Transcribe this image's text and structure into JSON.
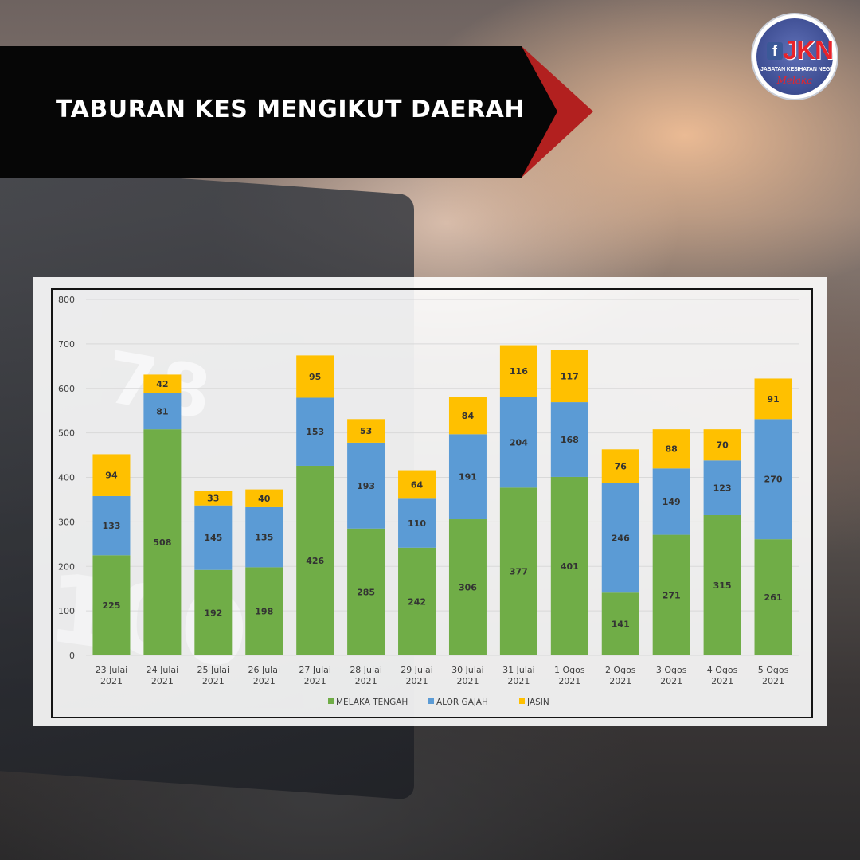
{
  "header": {
    "title": "TABURAN KES MENGIKUT DAERAH"
  },
  "logo": {
    "brand": "JKN",
    "subtitle": "JABATAN KESIHATAN NEGERI",
    "script": "Melaka",
    "social_glyph": "f",
    "icon": "facebook-icon"
  },
  "colors": {
    "banner_black": "#060606",
    "banner_red": "#b2201f",
    "melaka_tengah": "#70ad47",
    "alor_gajah": "#5b9bd5",
    "jasin": "#ffc000"
  },
  "chart_data": {
    "type": "bar",
    "stacked": true,
    "categories": [
      [
        "23 Julai",
        "2021"
      ],
      [
        "24 Julai",
        "2021"
      ],
      [
        "25 Julai",
        "2021"
      ],
      [
        "26 Julai",
        "2021"
      ],
      [
        "27 Julai",
        "2021"
      ],
      [
        "28 Julai",
        "2021"
      ],
      [
        "29 Julai",
        "2021"
      ],
      [
        "30 Julai",
        "2021"
      ],
      [
        "31 Julai",
        "2021"
      ],
      [
        "1 Ogos",
        "2021"
      ],
      [
        "2 Ogos",
        "2021"
      ],
      [
        "3 Ogos",
        "2021"
      ],
      [
        "4 Ogos",
        "2021"
      ],
      [
        "5 Ogos",
        "2021"
      ]
    ],
    "series": [
      {
        "name": "MELAKA TENGAH",
        "color": "#70ad47",
        "values": [
          225,
          508,
          192,
          198,
          426,
          285,
          242,
          306,
          377,
          401,
          141,
          271,
          315,
          261
        ]
      },
      {
        "name": "ALOR GAJAH",
        "color": "#5b9bd5",
        "values": [
          133,
          81,
          145,
          135,
          153,
          193,
          110,
          191,
          204,
          168,
          246,
          149,
          123,
          270
        ]
      },
      {
        "name": "JASIN",
        "color": "#ffc000",
        "values": [
          94,
          42,
          33,
          40,
          95,
          53,
          64,
          84,
          116,
          117,
          76,
          88,
          70,
          91
        ]
      }
    ],
    "yticks": [
      0,
      100,
      200,
      300,
      400,
      500,
      600,
      700,
      800
    ],
    "ylim": [
      0,
      800
    ],
    "grid": true,
    "legend_position": "bottom"
  }
}
